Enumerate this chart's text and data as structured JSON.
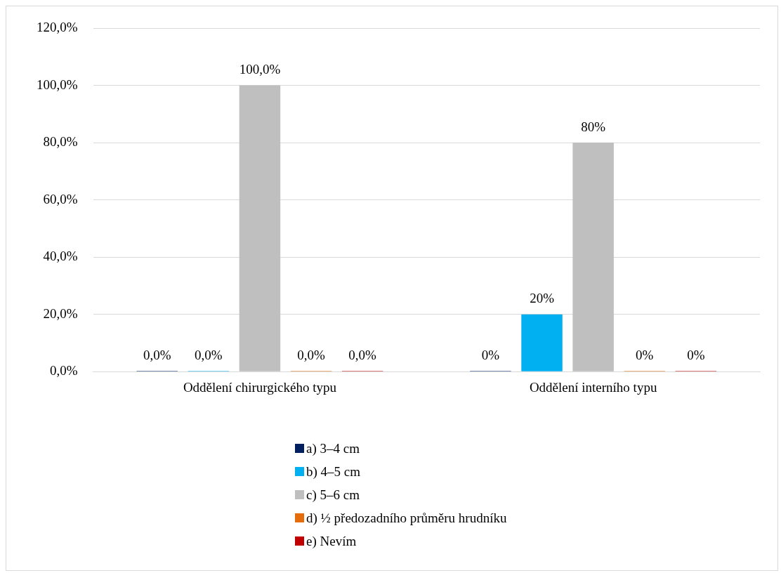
{
  "chart_data": {
    "type": "bar",
    "categories": [
      "Oddělení chirurgického typu",
      "Oddělení interního typu"
    ],
    "series": [
      {
        "name": "a) 3–4 cm",
        "color": "#002060",
        "values": [
          0,
          0
        ],
        "value_labels": [
          "0,0%",
          "0%"
        ]
      },
      {
        "name": "b) 4–5 cm",
        "color": "#00b0f0",
        "values": [
          0,
          20
        ],
        "value_labels": [
          "0,0%",
          "20%"
        ]
      },
      {
        "name": "c) 5–6 cm",
        "color": "#bfbfbf",
        "values": [
          100,
          80
        ],
        "value_labels": [
          "100,0%",
          "80%"
        ]
      },
      {
        "name": "d) ½ předozadního průměru hrudníku",
        "color": "#e46c0a",
        "values": [
          0,
          0
        ],
        "value_labels": [
          "0,0%",
          "0%"
        ]
      },
      {
        "name": "e) Nevím",
        "color": "#c00000",
        "values": [
          0,
          0
        ],
        "value_labels": [
          "0,0%",
          "0%"
        ]
      }
    ],
    "ylim": [
      0,
      120
    ],
    "yticks": [
      {
        "value": 0,
        "label": "0,0%"
      },
      {
        "value": 20,
        "label": "20,0%"
      },
      {
        "value": 40,
        "label": "40,0%"
      },
      {
        "value": 60,
        "label": "60,0%"
      },
      {
        "value": 80,
        "label": "80,0%"
      },
      {
        "value": 100,
        "label": "100,0%"
      },
      {
        "value": 120,
        "label": "120,0%"
      }
    ],
    "grid": "y",
    "legend": "bottom"
  }
}
